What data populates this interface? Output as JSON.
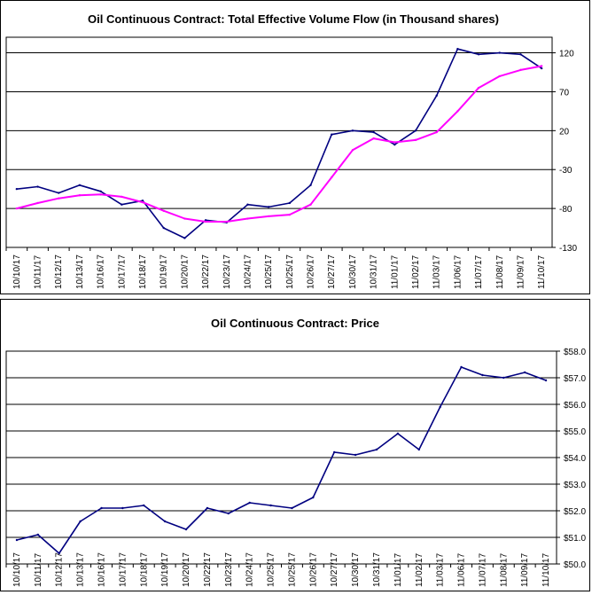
{
  "chart_data": [
    {
      "type": "line",
      "title": "Oil Continuous Contract: Total Effective Volume Flow (in Thousand shares)",
      "xlabel": "",
      "ylabel": "",
      "categories": [
        "10/10/17",
        "10/11/17",
        "10/12/17",
        "10/13/17",
        "10/16/17",
        "10/17/17",
        "10/18/17",
        "10/19/17",
        "10/20/17",
        "10/22/17",
        "10/23/17",
        "10/24/17",
        "10/25/17",
        "10/25/17",
        "10/26/17",
        "10/27/17",
        "10/30/17",
        "10/31/17",
        "11/01/17",
        "11/02/17",
        "11/03/17",
        "11/06/17",
        "11/07/17",
        "11/08/17",
        "11/09/17",
        "11/10/17"
      ],
      "y_ticks": [
        "-130",
        "-80",
        "-30",
        "20",
        "70",
        "120"
      ],
      "ylim": [
        -130,
        140
      ],
      "grid": true,
      "series": [
        {
          "color": "#000080",
          "values": [
            -55,
            -52,
            -60,
            -50,
            -58,
            -75,
            -70,
            -105,
            -118,
            -95,
            -98,
            -75,
            -78,
            -73,
            -50,
            15,
            20,
            18,
            2,
            20,
            65,
            125,
            118,
            120,
            118,
            100
          ]
        },
        {
          "color": "#ff00ff",
          "values": [
            -80,
            -73,
            -67,
            -63,
            -62,
            -65,
            -72,
            -83,
            -93,
            -97,
            -97,
            -93,
            -90,
            -88,
            -75,
            -40,
            -5,
            10,
            5,
            8,
            18,
            45,
            75,
            90,
            98,
            103
          ]
        }
      ]
    },
    {
      "type": "line",
      "title": "Oil Continuous Contract: Price",
      "xlabel": "",
      "ylabel": "",
      "categories": [
        "10/10/17",
        "10/11/17",
        "10/12/17",
        "10/13/17",
        "10/16/17",
        "10/17/17",
        "10/18/17",
        "10/19/17",
        "10/20/17",
        "10/22/17",
        "10/23/17",
        "10/24/17",
        "10/25/17",
        "10/25/17",
        "10/26/17",
        "10/27/17",
        "10/30/17",
        "10/31/17",
        "11/01/17",
        "11/02/17",
        "11/03/17",
        "11/06/17",
        "11/07/17",
        "11/08/17",
        "11/09/17",
        "11/10/17"
      ],
      "y_ticks": [
        "$50.0",
        "$51.0",
        "$52.0",
        "$53.0",
        "$54.0",
        "$55.0",
        "$56.0",
        "$57.0",
        "$58.0"
      ],
      "ylim": [
        50,
        58
      ],
      "grid": true,
      "series": [
        {
          "color": "#000080",
          "values": [
            50.9,
            51.1,
            50.4,
            51.6,
            52.1,
            52.1,
            52.2,
            51.6,
            51.3,
            52.1,
            51.9,
            52.3,
            52.2,
            52.1,
            52.5,
            54.2,
            54.1,
            54.3,
            54.9,
            54.3,
            55.9,
            57.4,
            57.1,
            57.0,
            57.2,
            56.9
          ]
        }
      ]
    }
  ]
}
